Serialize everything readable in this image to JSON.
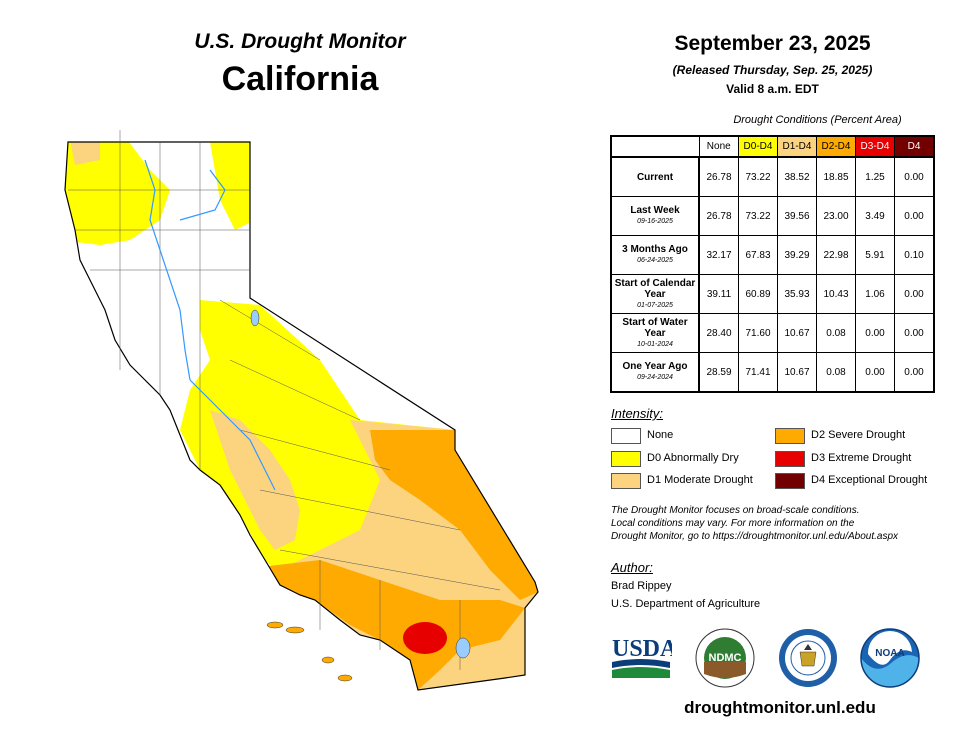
{
  "header": {
    "top_title": "U.S. Drought Monitor",
    "state": "California",
    "date": "September 23, 2025",
    "released": "(Released Thursday, Sep. 25, 2025)",
    "valid": "Valid 8 a.m. EDT"
  },
  "table": {
    "title": "Drought Conditions (Percent Area)",
    "columns": [
      {
        "label": "None",
        "color": "#ffffff",
        "text_color": "#000000"
      },
      {
        "label": "D0-D4",
        "color": "#ffff00",
        "text_color": "#000000"
      },
      {
        "label": "D1-D4",
        "color": "#fcd37f",
        "text_color": "#000000"
      },
      {
        "label": "D2-D4",
        "color": "#ffaa00",
        "text_color": "#000000"
      },
      {
        "label": "D3-D4",
        "color": "#e60000",
        "text_color": "#ffffff"
      },
      {
        "label": "D4",
        "color": "#730000",
        "text_color": "#ffffff"
      }
    ],
    "rows": [
      {
        "label": "Current",
        "date": "",
        "values": [
          "26.78",
          "73.22",
          "38.52",
          "18.85",
          "1.25",
          "0.00"
        ]
      },
      {
        "label": "Last Week",
        "date": "09-16-2025",
        "values": [
          "26.78",
          "73.22",
          "39.56",
          "23.00",
          "3.49",
          "0.00"
        ]
      },
      {
        "label": "3 Months Ago",
        "date": "06-24-2025",
        "values": [
          "32.17",
          "67.83",
          "39.29",
          "22.98",
          "5.91",
          "0.10"
        ]
      },
      {
        "label": "Start of Calendar Year",
        "date": "01-07-2025",
        "values": [
          "39.11",
          "60.89",
          "35.93",
          "10.43",
          "1.06",
          "0.00"
        ]
      },
      {
        "label": "Start of Water Year",
        "date": "10-01-2024",
        "values": [
          "28.40",
          "71.60",
          "10.67",
          "0.08",
          "0.00",
          "0.00"
        ]
      },
      {
        "label": "One Year Ago",
        "date": "09-24-2024",
        "values": [
          "28.59",
          "71.41",
          "10.67",
          "0.08",
          "0.00",
          "0.00"
        ]
      }
    ]
  },
  "legend": {
    "title": "Intensity:",
    "items": [
      {
        "label": "None",
        "color": "#ffffff"
      },
      {
        "label": "D0 Abnormally Dry",
        "color": "#ffff00"
      },
      {
        "label": "D1 Moderate Drought",
        "color": "#fcd37f"
      },
      {
        "label": "D2 Severe Drought",
        "color": "#ffaa00"
      },
      {
        "label": "D3 Extreme Drought",
        "color": "#e60000"
      },
      {
        "label": "D4 Exceptional Drought",
        "color": "#730000"
      }
    ]
  },
  "note": {
    "line1": "The Drought Monitor focuses on broad-scale conditions.",
    "line2": "Local conditions may vary. For more information on the",
    "line3": "Drought Monitor, go to https://droughtmonitor.unl.edu/About.aspx"
  },
  "author": {
    "title": "Author:",
    "name": "Brad Rippey",
    "org": "U.S. Department of Agriculture"
  },
  "logos": {
    "usda": "USDA",
    "ndmc": "NDMC",
    "noaa": "NOAA"
  },
  "footer_url": "droughtmonitor.unl.edu"
}
